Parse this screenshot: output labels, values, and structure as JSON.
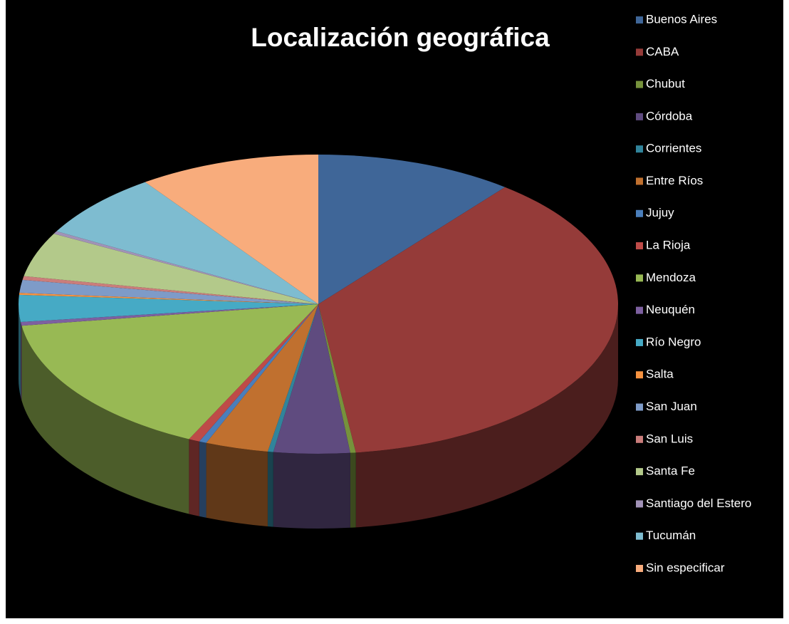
{
  "chart_data": {
    "type": "pie",
    "title": "Localización geográfica",
    "categories": [
      "Buenos Aires",
      "CABA",
      "Chubut",
      "Córdoba",
      "Corrientes",
      "Entre Ríos",
      "Jujuy",
      "La Rioja",
      "Mendoza",
      "Neuquén",
      "Río Negro",
      "Salta",
      "San Juan",
      "San Luis",
      "Santa Fe",
      "Santiago del Estero",
      "Tucumán",
      "Sin especificar"
    ],
    "values": [
      10.7,
      37.3,
      0.3,
      4.1,
      0.3,
      3.4,
      0.4,
      0.6,
      15.6,
      0.4,
      2.9,
      0.2,
      1.4,
      0.4,
      4.8,
      0.3,
      7.1,
      9.8
    ],
    "colors": [
      "#3F6698",
      "#953B39",
      "#76923C",
      "#5F4B7F",
      "#31849B",
      "#C0702F",
      "#4A7EBB",
      "#BE4B48",
      "#98B954",
      "#7D60A0",
      "#46AAC5",
      "#F69240",
      "#7E9BC8",
      "#CA7D7B",
      "#B3C98A",
      "#A192B7",
      "#7EBCD0",
      "#F8AC7C"
    ],
    "legend": "right"
  }
}
